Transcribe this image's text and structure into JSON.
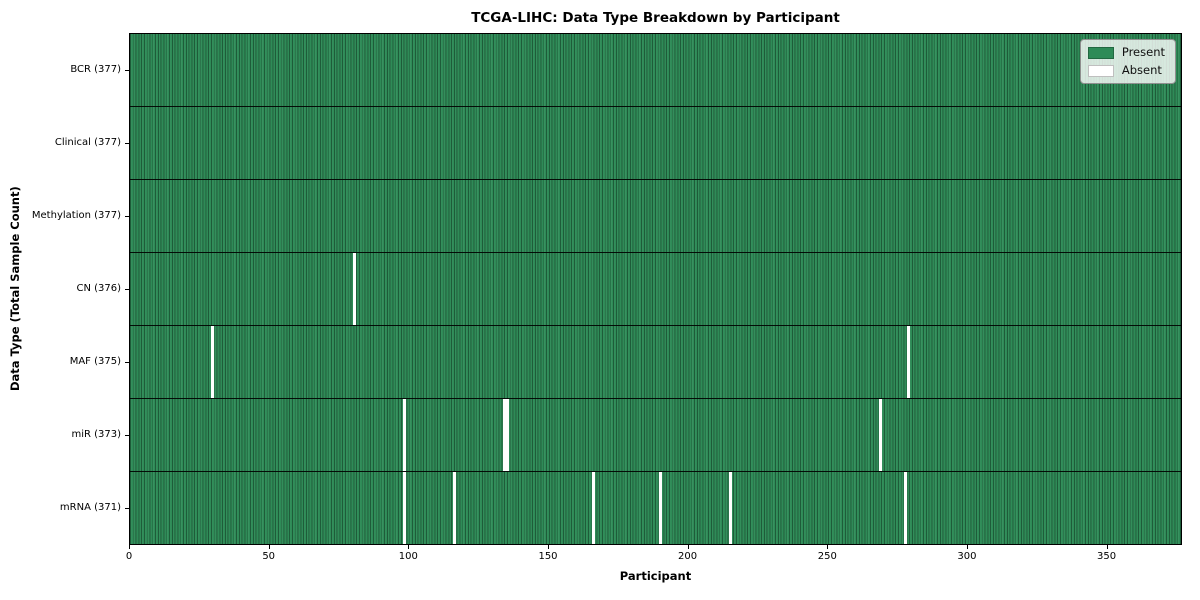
{
  "chart_data": {
    "type": "heatmap",
    "title": "TCGA-LIHC: Data Type Breakdown by Participant",
    "xlabel": "Participant",
    "ylabel": "Data Type (Total Sample Count)",
    "n_participants": 377,
    "xlim": [
      0,
      377
    ],
    "x_ticks": [
      0,
      50,
      100,
      150,
      200,
      250,
      300,
      350
    ],
    "grid": false,
    "legend_position": "upper-right",
    "legend_entries": [
      {
        "label": "Present",
        "color": "#2e8b57"
      },
      {
        "label": "Absent",
        "color": "#ffffff"
      }
    ],
    "cell_colors": {
      "present": "#2e8b57",
      "absent": "#ffffff",
      "row_separator": "#000000"
    },
    "rows": [
      {
        "label": "BCR (377)",
        "data_type": "BCR",
        "present_count": 377,
        "absent_count": 0,
        "absent_participants": []
      },
      {
        "label": "Clinical (377)",
        "data_type": "Clinical",
        "present_count": 377,
        "absent_count": 0,
        "absent_participants": []
      },
      {
        "label": "Methylation (377)",
        "data_type": "Methylation",
        "present_count": 377,
        "absent_count": 0,
        "absent_participants": []
      },
      {
        "label": "CN (376)",
        "data_type": "CN",
        "present_count": 376,
        "absent_count": 1,
        "absent_participants": [
          80
        ]
      },
      {
        "label": "MAF (375)",
        "data_type": "MAF",
        "present_count": 375,
        "absent_count": 2,
        "absent_participants": [
          29,
          279
        ]
      },
      {
        "label": "miR (373)",
        "data_type": "miR",
        "present_count": 373,
        "absent_count": 4,
        "absent_participants": [
          98,
          134,
          135,
          269
        ]
      },
      {
        "label": "mRNA (371)",
        "data_type": "mRNA",
        "present_count": 371,
        "absent_count": 6,
        "absent_participants": [
          98,
          116,
          166,
          190,
          215,
          278
        ]
      }
    ]
  }
}
